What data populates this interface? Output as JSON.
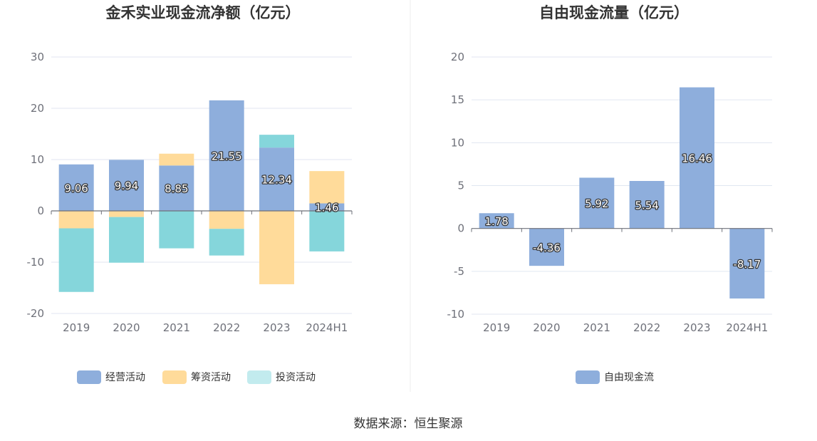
{
  "source_text": "数据来源：恒生聚源",
  "colors": {
    "operating": "#8eaedc",
    "financing": "#ffdb9a",
    "investing": "#85d6db",
    "legend_investing": "#c2ebee",
    "grid": "#e0e6f1",
    "axis": "#6e7079"
  },
  "chart_data": [
    {
      "type": "bar",
      "stacked": true,
      "title": "金禾实业现金流净额（亿元）",
      "categories": [
        "2019",
        "2020",
        "2021",
        "2022",
        "2023",
        "2024H1"
      ],
      "ylim": [
        -20,
        30
      ],
      "yticks": [
        30,
        20,
        10,
        0,
        -10,
        -20
      ],
      "legend": [
        "经营活动",
        "筹资活动",
        "投资活动"
      ],
      "series": [
        {
          "name": "经营活动",
          "values": [
            9.06,
            9.94,
            8.85,
            21.55,
            12.34,
            1.46
          ],
          "labels": [
            "9.06",
            "9.94",
            "8.85",
            "21.55",
            "12.34",
            "1.46"
          ]
        },
        {
          "name": "筹资活动",
          "values": [
            -3.4,
            -1.2,
            2.3,
            -3.5,
            -14.3,
            6.3
          ]
        },
        {
          "name": "投资活动",
          "values": [
            -12.4,
            -8.9,
            -7.3,
            -5.2,
            2.5,
            -7.9
          ]
        }
      ]
    },
    {
      "type": "bar",
      "title": "自由现金流量（亿元）",
      "categories": [
        "2019",
        "2020",
        "2021",
        "2022",
        "2023",
        "2024H1"
      ],
      "ylim": [
        -10,
        20
      ],
      "yticks": [
        20,
        15,
        10,
        5,
        0,
        -5,
        -10
      ],
      "legend": [
        "自由现金流"
      ],
      "series": [
        {
          "name": "自由现金流",
          "values": [
            1.78,
            -4.36,
            5.92,
            5.54,
            16.46,
            -8.17
          ],
          "labels": [
            "1.78",
            "-4.36",
            "5.92",
            "5.54",
            "16.46",
            "-8.17"
          ]
        }
      ]
    }
  ]
}
